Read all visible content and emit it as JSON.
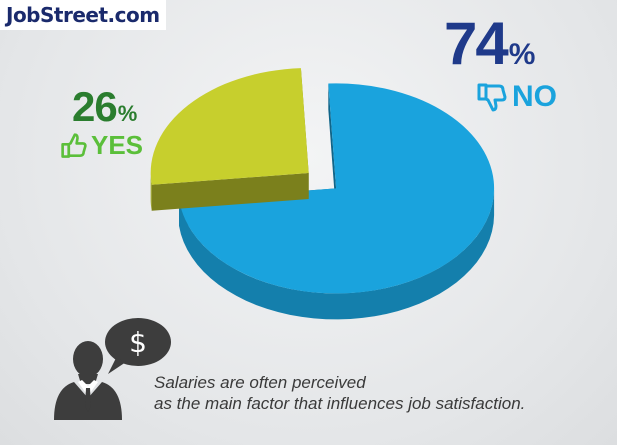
{
  "brand": {
    "logo_text": "JobStreet.com"
  },
  "chart_data": {
    "type": "pie",
    "title": "",
    "series": [
      {
        "name": "NO",
        "value": 74,
        "value_label": "74",
        "unit": "%",
        "color": "#1aa3dd"
      },
      {
        "name": "YES",
        "value": 26,
        "value_label": "26",
        "unit": "%",
        "color": "#c7cf2d"
      }
    ],
    "style": "3d-exploded"
  },
  "icons": {
    "no": "thumbs-down-icon",
    "yes": "thumbs-up-icon",
    "person": "businessman-icon",
    "speech": "dollar-speech-bubble-icon"
  },
  "caption": {
    "line1": "Salaries are often perceived",
    "line2": "as the main factor that influences job satisfaction."
  }
}
